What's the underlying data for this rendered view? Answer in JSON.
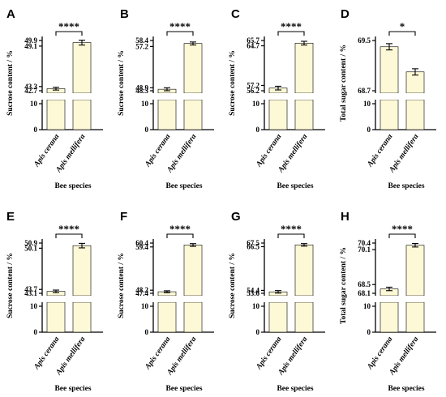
{
  "colors": {
    "bar_fill": "#fdf8d6",
    "axis": "#000000",
    "bar_stroke": "#000000"
  },
  "chart_data": [
    {
      "type": "bar",
      "panel": "A",
      "categories": [
        "Apis cerana",
        "Apis mellifera"
      ],
      "xlabel": "Bee species",
      "ylabel": "Sucrose content / %",
      "significance": "****",
      "broken_axis": true,
      "low_ticks": [
        "0",
        "10"
      ],
      "high_ticks": [
        "42.7",
        "43.3",
        "49.1",
        "49.9"
      ],
      "values": [
        43.0,
        49.6
      ],
      "errors": [
        0.2,
        0.35
      ]
    },
    {
      "type": "bar",
      "panel": "B",
      "categories": [
        "Apis cerana",
        "Apis mellifera"
      ],
      "xlabel": "Bee species",
      "ylabel": "Sucrose content / %",
      "significance": "****",
      "broken_axis": true,
      "low_ticks": [
        "0",
        "10"
      ],
      "high_ticks": [
        "48.3",
        "48.9",
        "57.2",
        "58.4"
      ],
      "values": [
        48.6,
        57.8
      ],
      "errors": [
        0.3,
        0.3
      ]
    },
    {
      "type": "bar",
      "panel": "C",
      "categories": [
        "Apis cerana",
        "Apis mellifera"
      ],
      "xlabel": "Bee species",
      "ylabel": "Sucrose content / %",
      "significance": "****",
      "broken_axis": true,
      "low_ticks": [
        "0",
        "10"
      ],
      "high_ticks": [
        "56.2",
        "57.2",
        "64.7",
        "65.7"
      ],
      "values": [
        56.7,
        65.2
      ],
      "errors": [
        0.35,
        0.35
      ]
    },
    {
      "type": "bar",
      "panel": "D",
      "categories": [
        "Apis cerana",
        "Apis mellifera"
      ],
      "xlabel": "Bee species",
      "ylabel": "Total sugar content / %",
      "significance": "*",
      "broken_axis": true,
      "low_ticks": [
        "0",
        "10"
      ],
      "high_ticks": [
        "68.7",
        "69.5"
      ],
      "values": [
        69.4,
        69.0
      ],
      "errors": [
        0.05,
        0.05
      ]
    },
    {
      "type": "bar",
      "panel": "E",
      "categories": [
        "Apis cerana",
        "Apis mellifera"
      ],
      "xlabel": "Bee species",
      "ylabel": "Sucrose content / %",
      "significance": "****",
      "broken_axis": true,
      "low_ticks": [
        "0",
        "10"
      ],
      "high_ticks": [
        "43.1",
        "43.7",
        "50.1",
        "50.9"
      ],
      "values": [
        43.4,
        50.5
      ],
      "errors": [
        0.2,
        0.35
      ]
    },
    {
      "type": "bar",
      "panel": "F",
      "categories": [
        "Apis cerana",
        "Apis mellifera"
      ],
      "xlabel": "Bee species",
      "ylabel": "Sucrose content / %",
      "significance": "****",
      "broken_axis": true,
      "low_ticks": [
        "0",
        "10"
      ],
      "high_ticks": [
        "47.4",
        "48.2",
        "59.4",
        "60.4"
      ],
      "values": [
        47.8,
        59.9
      ],
      "errors": [
        0.25,
        0.35
      ]
    },
    {
      "type": "bar",
      "panel": "G",
      "categories": [
        "Apis cerana",
        "Apis mellifera"
      ],
      "xlabel": "Bee species",
      "ylabel": "Sucrose content / %",
      "significance": "****",
      "broken_axis": true,
      "low_ticks": [
        "0",
        "10"
      ],
      "high_ticks": [
        "53.6",
        "54.4",
        "66.5",
        "67.5"
      ],
      "values": [
        54.0,
        67.0
      ],
      "errors": [
        0.35,
        0.35
      ]
    },
    {
      "type": "bar",
      "panel": "H",
      "categories": [
        "Apis cerana",
        "Apis mellifera"
      ],
      "xlabel": "Bee species",
      "ylabel": "Total sugar content / %",
      "significance": "****",
      "broken_axis": true,
      "low_ticks": [
        "0",
        "10"
      ],
      "high_ticks": [
        "68.1",
        "68.5",
        "70.1",
        "70.4"
      ],
      "values": [
        68.3,
        70.3
      ],
      "errors": [
        0.08,
        0.08
      ]
    }
  ]
}
